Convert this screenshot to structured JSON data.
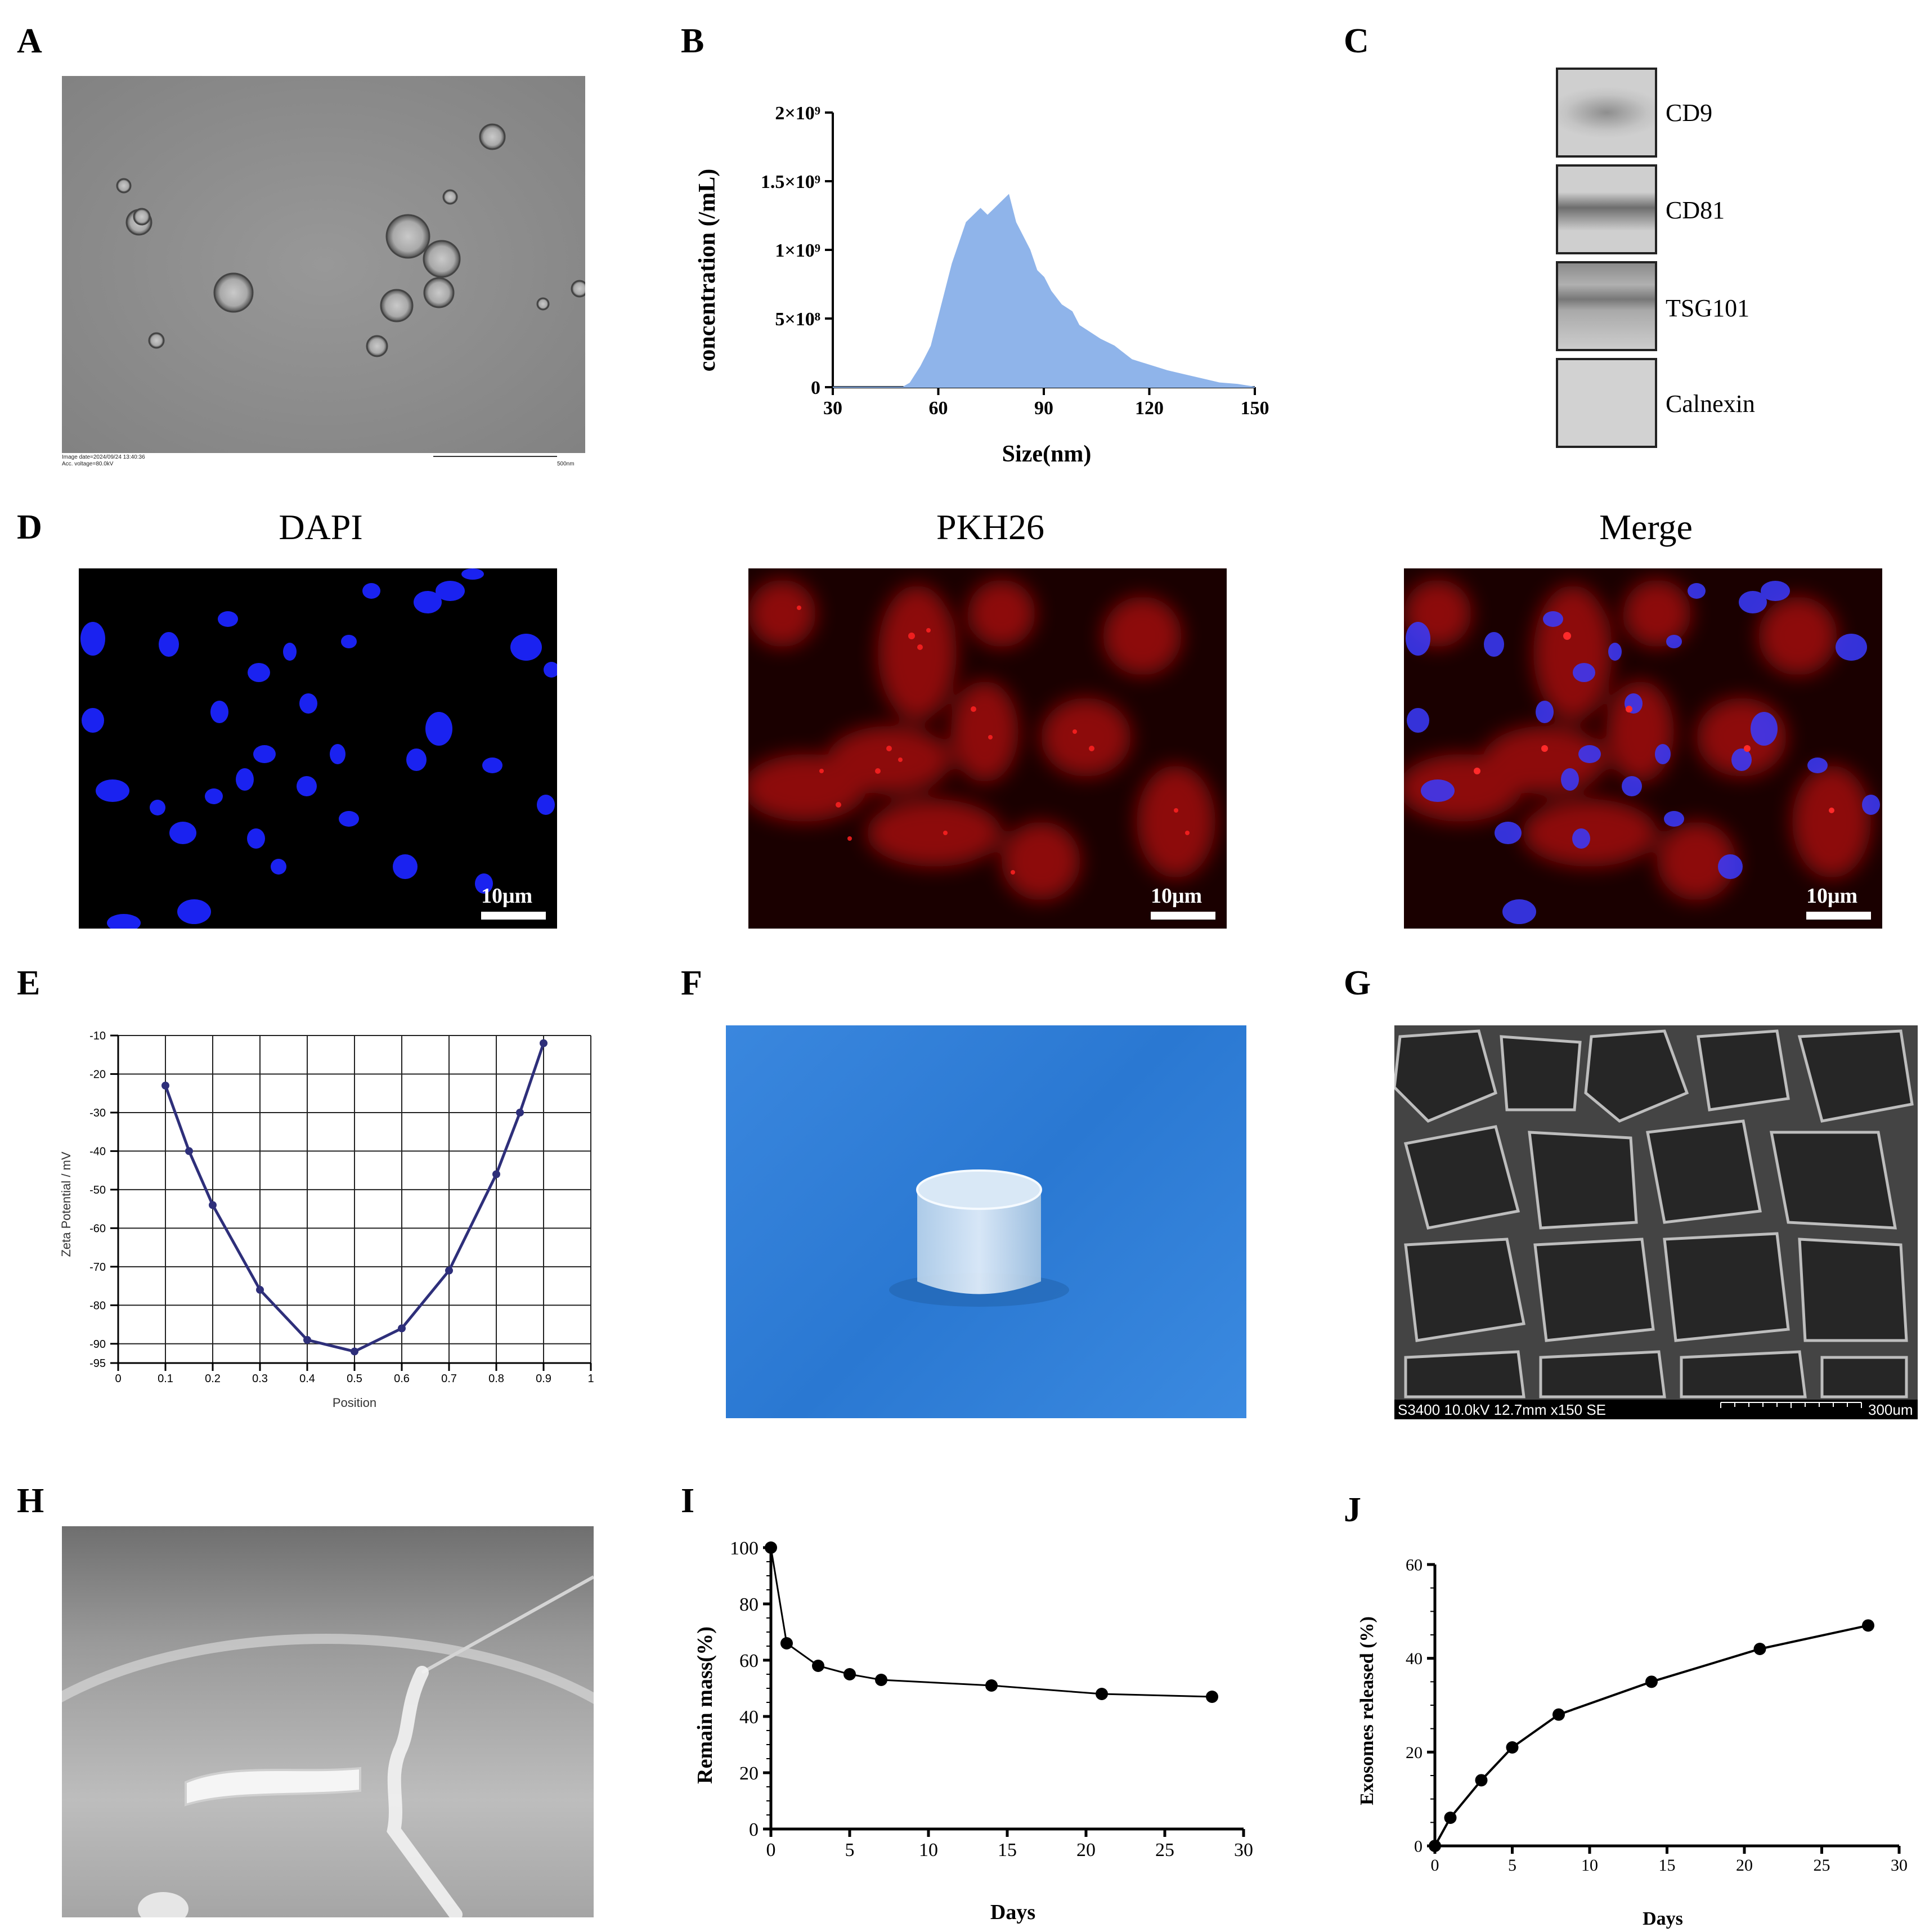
{
  "panels": {
    "A": "A",
    "B": "B",
    "C": "C",
    "D": "D",
    "E": "E",
    "F": "F",
    "G": "G",
    "H": "H",
    "I": "I",
    "J": "J"
  },
  "tem": {
    "info_line1": "Image date=2024/09/24 13:40:36",
    "info_line2": "Acc. voltage=80.0kV",
    "scale_label": "500nm"
  },
  "western_blot": {
    "bands": [
      "CD9",
      "CD81",
      "TSG101",
      "Calnexin"
    ]
  },
  "fluorescence": {
    "titles": [
      "DAPI",
      "PKH26",
      "Merge"
    ],
    "scale_label": "10μm"
  },
  "sem": {
    "info": "S3400 10.0kV 12.7mm x150 SE",
    "scale_label": "300um"
  },
  "charts": {
    "B": {
      "xlabel": "Size(nm)",
      "ylabel": "concentration (/mL)",
      "xticks": [
        "30",
        "60",
        "90",
        "120",
        "150"
      ],
      "yticks": [
        "0",
        "5×10⁸",
        "1×10⁹",
        "1.5×10⁹",
        "2×10⁹"
      ]
    },
    "E": {
      "xlabel": "Position",
      "ylabel": "Zeta Potential / mV",
      "xticks": [
        "0",
        "0.1",
        "0.2",
        "0.3",
        "0.4",
        "0.5",
        "0.6",
        "0.7",
        "0.8",
        "0.9",
        "1"
      ],
      "yticks": [
        "-10",
        "-20",
        "-30",
        "-40",
        "-50",
        "-60",
        "-70",
        "-80",
        "-90",
        "-95"
      ]
    },
    "I": {
      "xlabel": "Days",
      "ylabel": "Remain mass(%)",
      "xticks": [
        "0",
        "5",
        "10",
        "15",
        "20",
        "25",
        "30"
      ],
      "yticks": [
        "0",
        "20",
        "40",
        "60",
        "80",
        "100"
      ]
    },
    "J": {
      "xlabel": "Days",
      "ylabel": "Exosomes released (%)",
      "xticks": [
        "0",
        "5",
        "10",
        "15",
        "20",
        "25",
        "30"
      ],
      "yticks": [
        "0",
        "20",
        "40",
        "60"
      ]
    }
  },
  "chart_data": [
    {
      "panel": "B",
      "type": "area",
      "x": [
        30,
        50,
        52,
        55,
        58,
        60,
        62,
        64,
        66,
        68,
        70,
        72,
        74,
        76,
        78,
        80,
        82,
        84,
        86,
        88,
        90,
        92,
        95,
        98,
        100,
        103,
        106,
        110,
        115,
        120,
        125,
        130,
        135,
        140,
        145,
        150
      ],
      "y": [
        0,
        0,
        30000000.0,
        150000000.0,
        300000000.0,
        500000000.0,
        700000000.0,
        900000000.0,
        1050000000.0,
        1200000000.0,
        1250000000.0,
        1300000000.0,
        1250000000.0,
        1300000000.0,
        1350000000.0,
        1400000000.0,
        1200000000.0,
        1100000000.0,
        1000000000.0,
        850000000.0,
        800000000.0,
        700000000.0,
        600000000.0,
        550000000.0,
        450000000.0,
        400000000.0,
        350000000.0,
        300000000.0,
        200000000.0,
        160000000.0,
        120000000.0,
        90000000.0,
        60000000.0,
        30000000.0,
        20000000.0,
        0
      ],
      "xlim": [
        30,
        150
      ],
      "ylim": [
        0,
        2000000000.0
      ],
      "color": "#8fb4ea"
    },
    {
      "panel": "E",
      "type": "line",
      "x": [
        0.1,
        0.15,
        0.2,
        0.3,
        0.4,
        0.5,
        0.6,
        0.7,
        0.8,
        0.85,
        0.9
      ],
      "y": [
        -23,
        -40,
        -54,
        -76,
        -89,
        -92,
        -86,
        -71,
        -46,
        -30,
        -12
      ],
      "xlim": [
        0,
        1
      ],
      "ylim": [
        -95,
        -10
      ],
      "color": "#2e2f7a",
      "grid": true
    },
    {
      "panel": "I",
      "type": "line",
      "x": [
        0,
        1,
        3,
        5,
        7,
        14,
        21,
        28
      ],
      "y": [
        100,
        66,
        58,
        55,
        53,
        51,
        48,
        47
      ],
      "xlim": [
        0,
        30
      ],
      "ylim": [
        0,
        100
      ]
    },
    {
      "panel": "J",
      "type": "line",
      "x": [
        0,
        1,
        3,
        5,
        8,
        14,
        21,
        28
      ],
      "y": [
        0,
        6,
        14,
        21,
        28,
        35,
        42,
        47
      ],
      "xlim": [
        0,
        30
      ],
      "ylim": [
        0,
        60
      ]
    }
  ]
}
